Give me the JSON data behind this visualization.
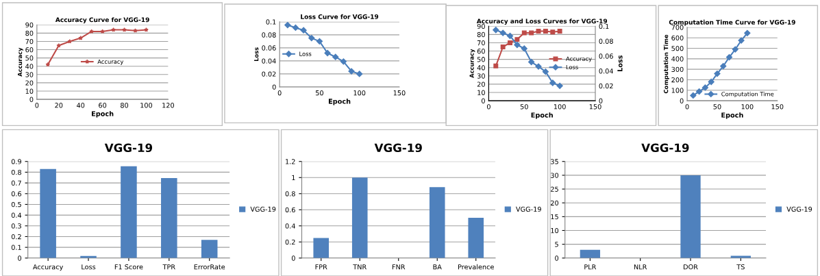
{
  "chart_data": [
    {
      "type": "line",
      "title": "Accuracy Curve for VGG-19",
      "xlabel": "Epoch",
      "ylabel": "Accuracy",
      "x": [
        10,
        20,
        30,
        40,
        50,
        60,
        70,
        80,
        90,
        100
      ],
      "series": [
        {
          "name": "Accuracy",
          "color": "#be4b48",
          "marker": "star",
          "values": [
            42,
            65,
            70,
            74,
            82,
            82,
            84,
            84,
            83,
            84
          ]
        }
      ],
      "xlim": [
        0,
        120
      ],
      "xticks": [
        0,
        20,
        40,
        60,
        80,
        100,
        120
      ],
      "ylim": [
        0,
        90
      ],
      "yticks": [
        0,
        10,
        20,
        30,
        40,
        50,
        60,
        70,
        80,
        90
      ],
      "grid": "y",
      "legend": "center"
    },
    {
      "type": "line",
      "title": "Loss Curve for VGG-19",
      "xlabel": "Epoch",
      "ylabel": "Loss",
      "x": [
        10,
        20,
        30,
        40,
        50,
        60,
        70,
        80,
        90,
        100
      ],
      "series": [
        {
          "name": "Loss",
          "color": "#4a7ebb",
          "marker": "diamond",
          "values": [
            0.095,
            0.091,
            0.087,
            0.075,
            0.07,
            0.052,
            0.046,
            0.039,
            0.024,
            0.02
          ]
        }
      ],
      "xlim": [
        0,
        150
      ],
      "xticks": [
        0,
        50,
        100,
        150
      ],
      "ylim": [
        0,
        0.1
      ],
      "yticks": [
        0,
        0.02,
        0.04,
        0.06,
        0.08,
        0.1
      ],
      "grid": "y",
      "legend": "center left"
    },
    {
      "type": "line",
      "title": "Accuracy and Loss Curves for VGG-19",
      "xlabel": "Epoch",
      "ylabel": "Accuracy",
      "y2label": "Loss",
      "x": [
        10,
        20,
        30,
        40,
        50,
        60,
        70,
        80,
        90,
        100
      ],
      "series": [
        {
          "name": "Accuracy",
          "color": "#be4b48",
          "marker": "square",
          "values": [
            42,
            65,
            70,
            74,
            82,
            82,
            84,
            84,
            83,
            84
          ]
        },
        {
          "name": "Loss",
          "color": "#4a7ebb",
          "marker": "diamond",
          "axis": "y2",
          "values": [
            0.095,
            0.091,
            0.087,
            0.075,
            0.07,
            0.052,
            0.046,
            0.039,
            0.024,
            0.02
          ]
        }
      ],
      "xlim": [
        0,
        150
      ],
      "xticks": [
        0,
        50,
        100,
        150
      ],
      "ylim": [
        0,
        90
      ],
      "yticks": [
        0,
        10,
        20,
        30,
        40,
        50,
        60,
        70,
        80,
        90
      ],
      "y2lim": [
        0,
        0.1
      ],
      "y2ticks": [
        0,
        0.02,
        0.04,
        0.06,
        0.08,
        0.1
      ],
      "grid": "y",
      "legend": "center right"
    },
    {
      "type": "line",
      "title": "Computation Time Curve for VGG-19",
      "xlabel": "Epoch",
      "ylabel": "Computation Time",
      "x": [
        10,
        20,
        30,
        40,
        50,
        60,
        70,
        80,
        90,
        100
      ],
      "series": [
        {
          "name": "Computation Time",
          "color": "#4a7ebb",
          "marker": "diamond",
          "values": [
            50,
            88,
            125,
            180,
            258,
            330,
            415,
            490,
            575,
            645
          ]
        }
      ],
      "xlim": [
        0,
        150
      ],
      "xticks": [
        0,
        50,
        100,
        150
      ],
      "ylim": [
        0,
        700
      ],
      "yticks": [
        0,
        100,
        200,
        300,
        400,
        500,
        600,
        700
      ],
      "grid": "y",
      "legend": "bottom right"
    },
    {
      "type": "bar",
      "title": "VGG-19",
      "categories": [
        "Accuracy",
        "Loss",
        "F1 Score",
        "TPR",
        "ErrorRate"
      ],
      "series": [
        {
          "name": "VGG-19",
          "color": "#4f81bd",
          "values": [
            0.83,
            0.02,
            0.855,
            0.745,
            0.17
          ]
        }
      ],
      "ylim": [
        0,
        0.9
      ],
      "yticks": [
        0,
        0.1,
        0.2,
        0.3,
        0.4,
        0.5,
        0.6,
        0.7,
        0.8,
        0.9
      ],
      "grid": "y",
      "legend": "right"
    },
    {
      "type": "bar",
      "title": "VGG-19",
      "categories": [
        "FPR",
        "TNR",
        "FNR",
        "BA",
        "Prevalence"
      ],
      "series": [
        {
          "name": "VGG-19",
          "color": "#4f81bd",
          "values": [
            0.25,
            1,
            0,
            0.88,
            0.5
          ]
        }
      ],
      "ylim": [
        0,
        1.2
      ],
      "yticks": [
        0,
        0.2,
        0.4,
        0.6,
        0.8,
        1,
        1.2
      ],
      "grid": "y",
      "legend": "right"
    },
    {
      "type": "bar",
      "title": "VGG-19",
      "categories": [
        "PLR",
        "NLR",
        "DOR",
        "TS"
      ],
      "series": [
        {
          "name": "VGG-19",
          "color": "#4f81bd",
          "values": [
            3,
            0,
            30,
            0.8
          ]
        }
      ],
      "ylim": [
        0,
        35
      ],
      "yticks": [
        0,
        5,
        10,
        15,
        20,
        25,
        30,
        35
      ],
      "grid": "y",
      "legend": "right"
    }
  ]
}
